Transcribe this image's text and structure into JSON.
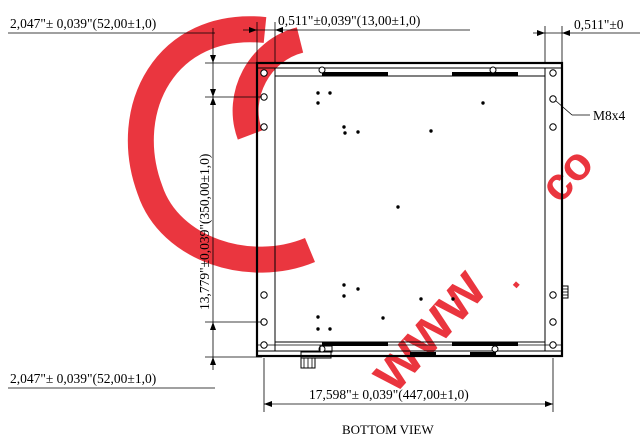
{
  "dimensions": {
    "top_left_offset": "2,047\"± 0,039\"(52,00±1,0)",
    "top_flange": "0,511\"±0,039\"(13,00±1,0)",
    "right_flange": "0,511\"±0",
    "height": "13,779\"±0,039\"(350,00±1,0)",
    "bottom_left_offset": "2,047\"± 0,039\"(52,00±1,0)",
    "width": "17,598\"± 0,039\"(447,00±1,0)"
  },
  "callouts": {
    "screw": "M8x4"
  },
  "caption": "BOTTOM VIEW",
  "watermark": {
    "color": "#e8202a"
  }
}
